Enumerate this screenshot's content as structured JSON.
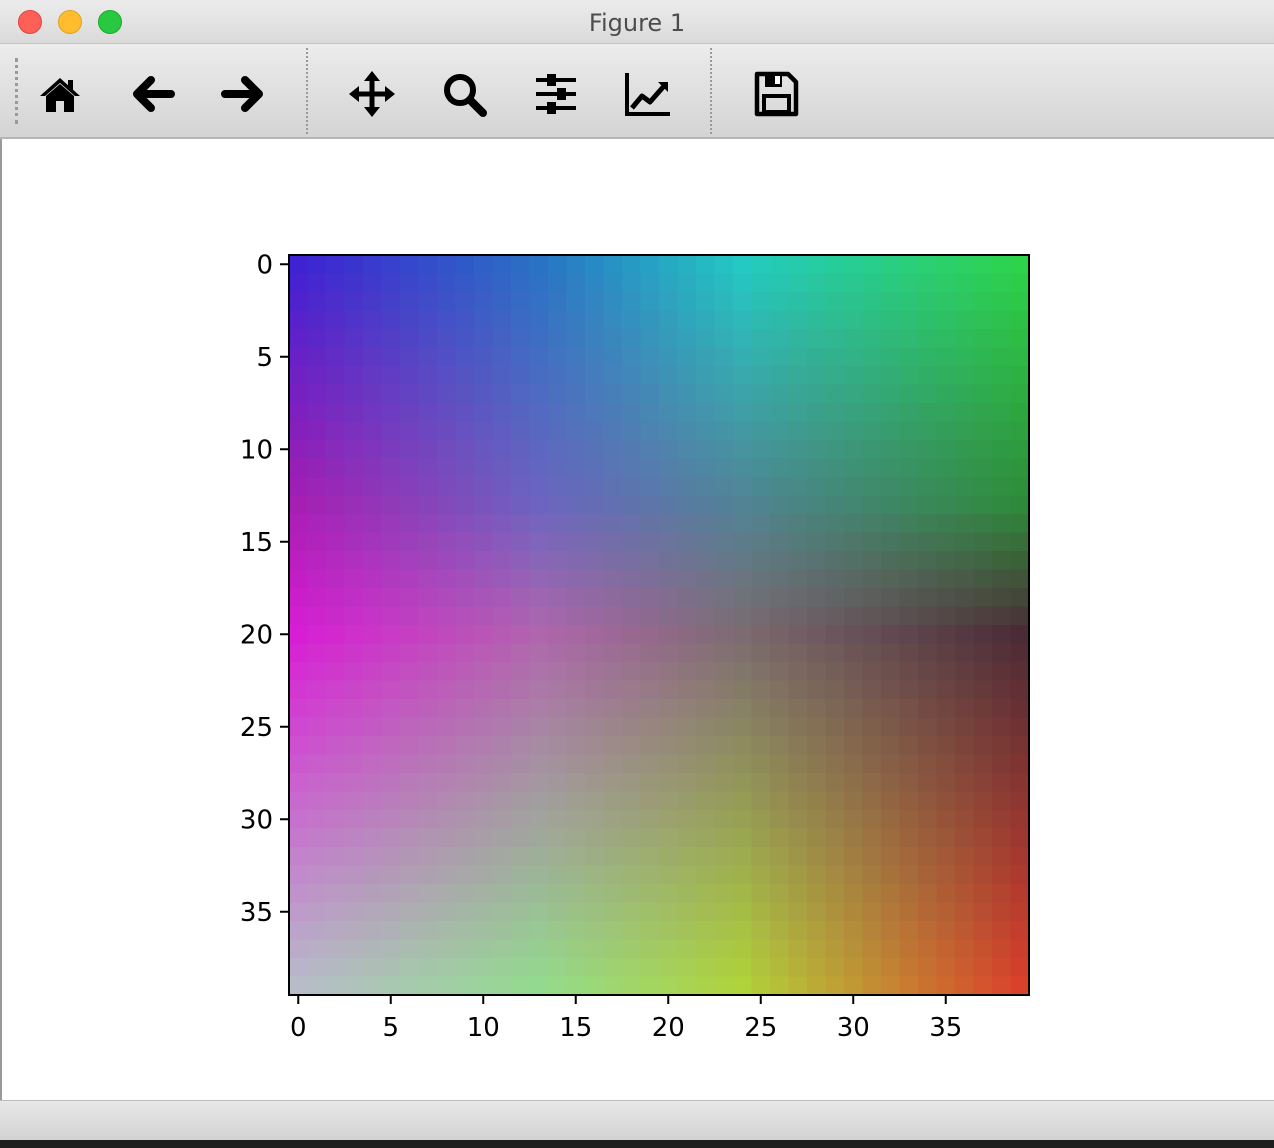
{
  "window": {
    "title": "Figure 1"
  },
  "toolbar": {
    "buttons": [
      {
        "id": "home",
        "icon": "home-icon"
      },
      {
        "id": "back",
        "icon": "arrow-left-icon"
      },
      {
        "id": "forward",
        "icon": "arrow-right-icon"
      },
      {
        "id": "pan",
        "icon": "move-arrows-icon"
      },
      {
        "id": "zoom",
        "icon": "magnifier-icon"
      },
      {
        "id": "subplots",
        "icon": "sliders-icon"
      },
      {
        "id": "edit-axes",
        "icon": "line-chart-icon"
      },
      {
        "id": "save",
        "icon": "floppy-disk-icon"
      }
    ]
  },
  "chart_data": {
    "type": "heatmap",
    "rows": 40,
    "cols": 40,
    "origin": "upper",
    "xticks": [
      0,
      5,
      10,
      15,
      20,
      25,
      30,
      35
    ],
    "yticks": [
      0,
      5,
      10,
      15,
      20,
      25,
      30,
      35
    ],
    "xlim": [
      -0.5,
      39.5
    ],
    "ylim": [
      39.5,
      -0.5
    ],
    "corner_colors": {
      "top_left": "#3f22d2",
      "top_right": "#2dd34a",
      "bottom_left": "#b7bcc8",
      "bottom_right": "#d9412b"
    },
    "anchor_colors": [
      {
        "row": 0,
        "col": 0,
        "color": "#3f22d2"
      },
      {
        "row": 0,
        "col": 13,
        "color": "#2a72c4"
      },
      {
        "row": 0,
        "col": 24,
        "color": "#24c9c3"
      },
      {
        "row": 0,
        "col": 39,
        "color": "#2dd34a"
      },
      {
        "row": 13,
        "col": 0,
        "color": "#a61fb3"
      },
      {
        "row": 13,
        "col": 13,
        "color": "#6c64c0"
      },
      {
        "row": 13,
        "col": 24,
        "color": "#518395"
      },
      {
        "row": 13,
        "col": 39,
        "color": "#2e8a3a"
      },
      {
        "row": 20,
        "col": 0,
        "color": "#d81ed4"
      },
      {
        "row": 20,
        "col": 13,
        "color": "#b066ad"
      },
      {
        "row": 20,
        "col": 24,
        "color": "#7c6b70"
      },
      {
        "row": 20,
        "col": 39,
        "color": "#4b2c36"
      },
      {
        "row": 39,
        "col": 0,
        "color": "#b7bcc8"
      },
      {
        "row": 39,
        "col": 13,
        "color": "#93da8e"
      },
      {
        "row": 39,
        "col": 24,
        "color": "#b0d23a"
      },
      {
        "row": 39,
        "col": 39,
        "color": "#d9412b"
      }
    ]
  }
}
